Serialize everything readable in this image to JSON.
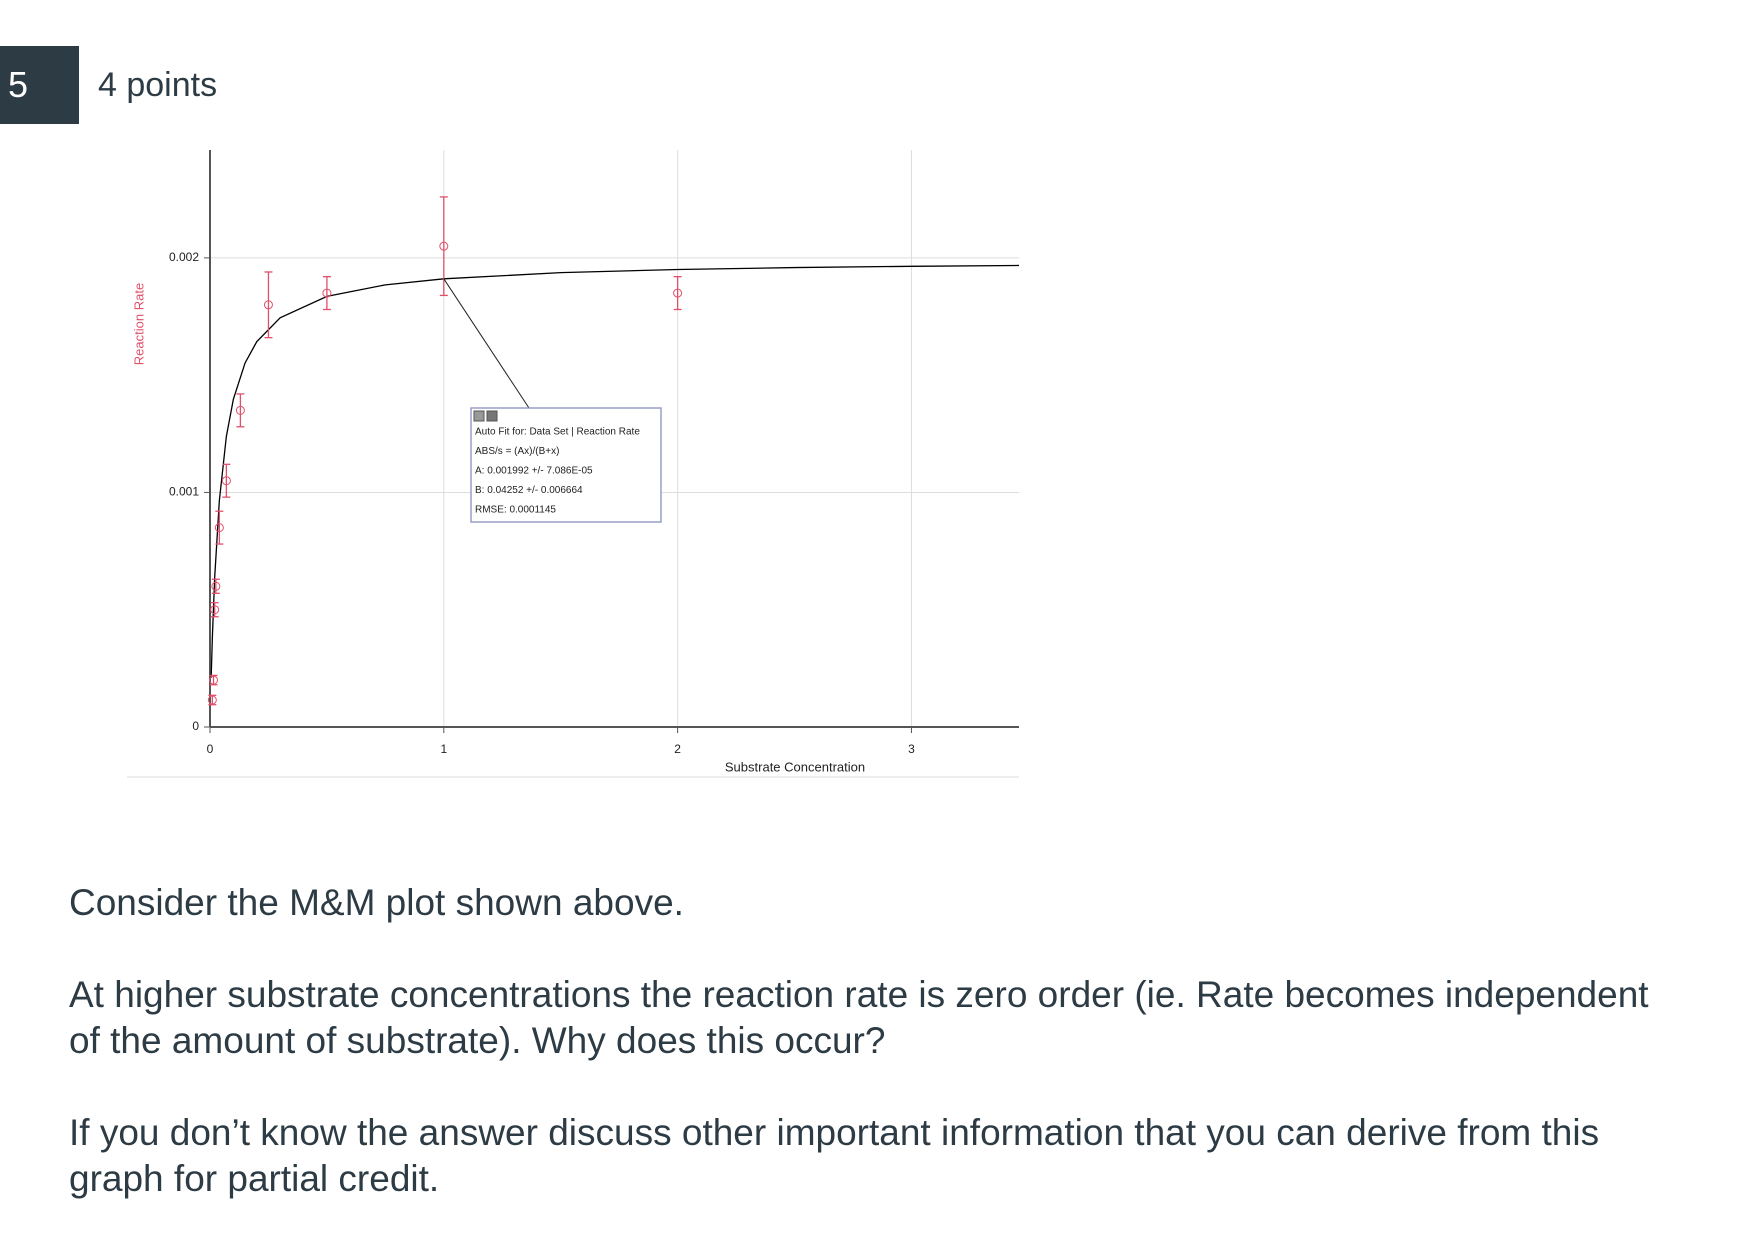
{
  "question": {
    "number": "5",
    "points": "4 points"
  },
  "chart_data": {
    "type": "scatter",
    "x_label": "Substrate Concentration",
    "y_label": "Reaction Rate",
    "x": [
      0.01,
      0.015,
      0.02,
      0.025,
      0.04,
      0.07,
      0.13,
      0.25,
      0.5,
      1,
      2
    ],
    "values": [
      0.000115,
      0.0002,
      0.0005,
      0.0006,
      0.00085,
      0.00105,
      0.00135,
      0.0018,
      0.00185,
      0.00205,
      0.00185
    ],
    "errors": [
      2e-05,
      2e-05,
      3e-05,
      3e-05,
      7e-05,
      7e-05,
      7e-05,
      0.00014,
      7e-05,
      0.00021,
      7e-05
    ],
    "color": "#e0506a",
    "fit": {
      "x": [
        0.005,
        0.01,
        0.02,
        0.04,
        0.07,
        0.1,
        0.15,
        0.2,
        0.3,
        0.5,
        0.75,
        1,
        1.5,
        2,
        2.5,
        3,
        3.46
      ],
      "values": [
        0.0002096,
        0.0003793,
        0.0006372,
        0.0009656,
        0.0012392,
        0.0013977,
        0.001552,
        0.0016427,
        0.0017447,
        0.0018359,
        0.0018851,
        0.0019108,
        0.0019371,
        0.0019505,
        0.0019587,
        0.0019642,
        0.0019678
      ],
      "color": "#000000"
    },
    "annotation": [
      "Auto Fit for: Data Set | Reaction Rate",
      "ABS/s = (Ax)/(B+x)",
      "A: 0.001992 +/- 7.086E-05",
      "B: 0.04252 +/- 0.006664",
      "RMSE: 0.0001145"
    ],
    "xlim": [
      0,
      3.46
    ],
    "ylim": [
      0,
      0.00246
    ],
    "xticks": [
      0,
      1,
      2,
      3
    ],
    "yticks": [
      0,
      0.001,
      0.002
    ],
    "grid": true
  },
  "paragraphs": [
    [
      "Consider the M&M plot shown above."
    ],
    [
      "At higher substrate concentrations the reaction rate is zero order (ie. Rate becomes independent",
      "of the amount of substrate).  Why does this occur?"
    ],
    [
      "If you don’t know the answer discuss other important information that you can derive from this",
      "graph for partial credit."
    ]
  ]
}
